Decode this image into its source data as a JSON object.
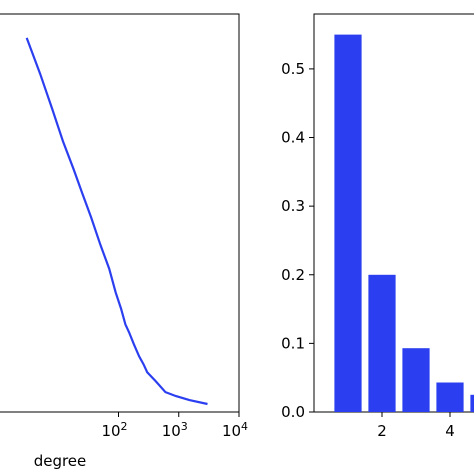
{
  "chart_data": [
    {
      "type": "line",
      "xlabel": "degree",
      "xscale": "log",
      "xlim": [
        1,
        10000
      ],
      "ylim": [
        0,
        1
      ],
      "xtick_labels": [
        {
          "base": "10",
          "exp": "2",
          "value": 100
        },
        {
          "base": "10",
          "exp": "3",
          "value": 1000
        },
        {
          "base": "10",
          "exp": "4",
          "value": 10000
        }
      ],
      "series": [
        {
          "color": "#2b3ff0",
          "x": [
            3,
            5,
            8,
            12,
            18,
            25,
            35,
            50,
            70,
            90,
            110,
            130,
            150,
            180,
            220,
            260,
            300,
            400,
            600,
            900,
            1500,
            3000
          ],
          "y": [
            0.94,
            0.85,
            0.76,
            0.68,
            0.61,
            0.55,
            0.49,
            0.42,
            0.36,
            0.3,
            0.26,
            0.22,
            0.2,
            0.17,
            0.14,
            0.12,
            0.1,
            0.08,
            0.05,
            0.04,
            0.03,
            0.02
          ]
        }
      ]
    },
    {
      "type": "bar",
      "xlim": [
        0,
        5
      ],
      "ylim": [
        0,
        0.58
      ],
      "xticks": [
        2,
        4
      ],
      "yticks": [
        0.0,
        0.1,
        0.2,
        0.3,
        0.4,
        0.5
      ],
      "color": "#2b3ff0",
      "x": [
        1,
        2,
        3,
        4,
        5
      ],
      "values": [
        0.55,
        0.2,
        0.093,
        0.043,
        0.025
      ]
    }
  ]
}
